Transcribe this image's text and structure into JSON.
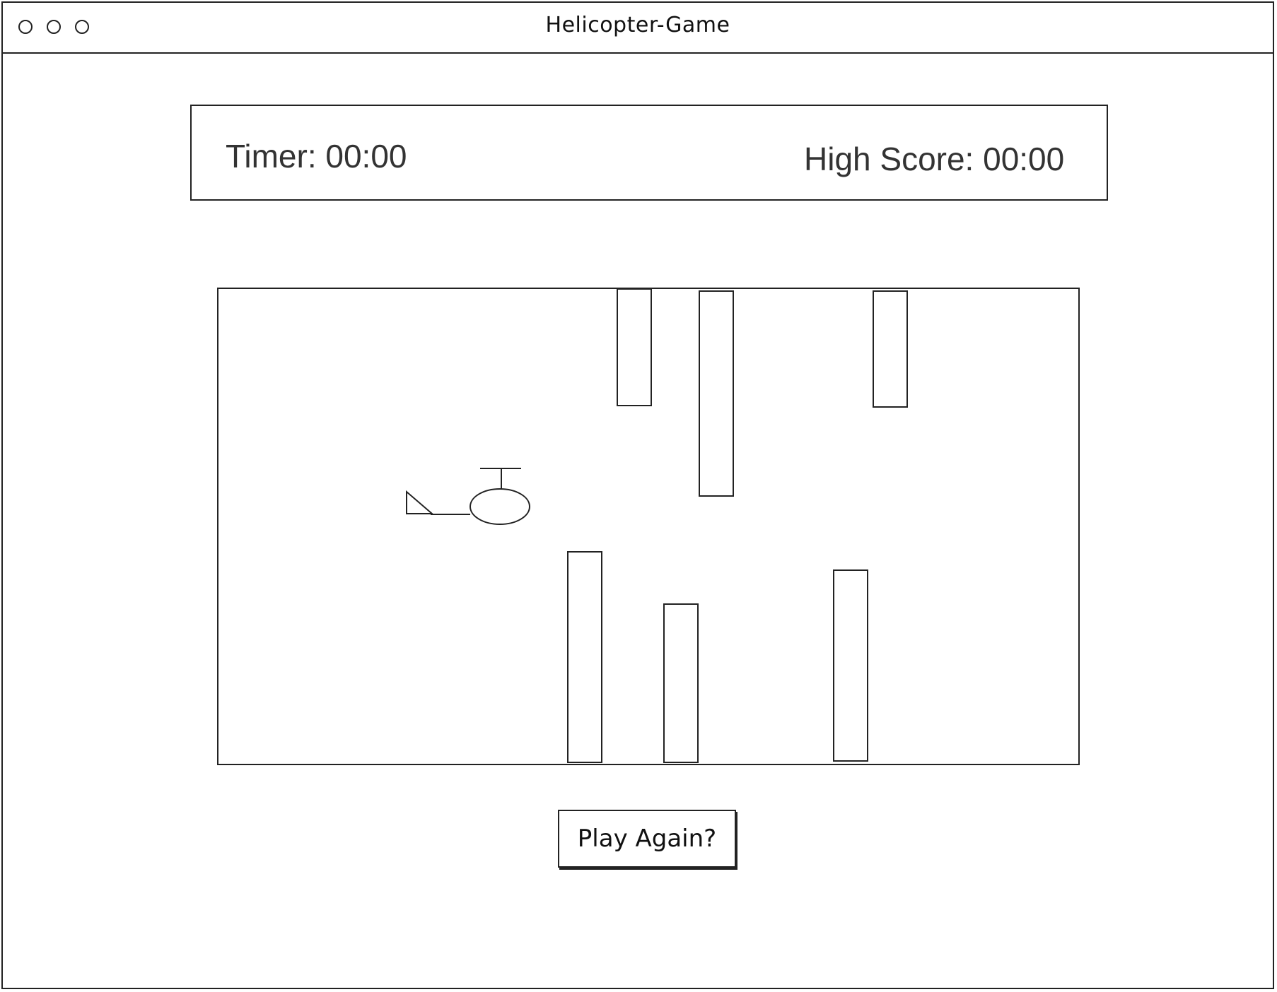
{
  "window": {
    "title": "Helicopter-Game",
    "controls": [
      "close-icon",
      "minimize-icon",
      "maximize-icon"
    ]
  },
  "scoreboard": {
    "timer_label": "Timer: 00:00",
    "high_score_label": "High Score: 00:00"
  },
  "game": {
    "player": "helicopter",
    "obstacles": {
      "top_count": 3,
      "bottom_count": 3
    }
  },
  "actions": {
    "play_again_label": "Play Again?"
  },
  "colors": {
    "stroke": "#222222",
    "text": "#333333",
    "background": "#ffffff"
  }
}
